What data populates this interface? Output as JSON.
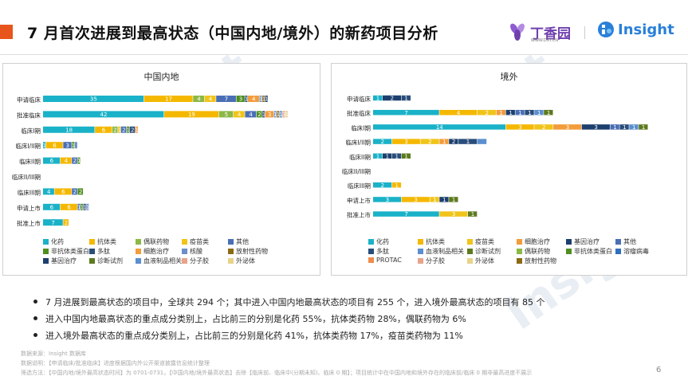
{
  "header": {
    "title": "7 月首次进展到最高状态（中国内地/境外）的新药项目分析",
    "logo_dxy": "丁香园",
    "logo_dxy_sub": "WWW.DXY.CN",
    "logo_insight": "Insight"
  },
  "watermark": "Insight",
  "colors": {
    "化药": "#1ab2c8",
    "抗体类": "#f5b800",
    "偶联药物": "#8cb846",
    "疫苗类": "#f0c419",
    "其他": "#4a6fb5",
    "非抗体类蛋白": "#4e8f1f",
    "多肽": "#2a4d7a",
    "细胞治疗": "#f39c3b",
    "核酸": "#6b8fc9",
    "放射性药物": "#8b6a14",
    "基因治疗": "#1d3f6e",
    "诊断试剂": "#5d7a1f",
    "血液制品相关": "#5b8fd0",
    "分子胶": "#e8a48a",
    "外泌体": "#e8d38a",
    "溶瘤病毒": "#2f6fc0",
    "PROTAC": "#f08c4a"
  },
  "chart_data": [
    {
      "type": "bar",
      "orientation": "horizontal-stacked",
      "title": "中国内地",
      "categories": [
        "申请临床",
        "批准临床",
        "临床I期",
        "临床I/II期",
        "临床II期",
        "临床II/III期",
        "临床III期",
        "申请上市",
        "批准上市"
      ],
      "series": [
        {
          "name": "化药",
          "values": [
            35,
            42,
            18,
            1,
            6,
            0,
            4,
            6,
            7
          ]
        },
        {
          "name": "抗体类",
          "values": [
            17,
            19,
            6,
            6,
            4,
            0,
            6,
            6,
            2
          ]
        },
        {
          "name": "偶联药物",
          "values": [
            4,
            5,
            2,
            0,
            0,
            0,
            0,
            0,
            0
          ]
        },
        {
          "name": "疫苗类",
          "values": [
            4,
            4,
            1,
            0,
            0,
            0,
            0,
            0,
            0
          ]
        },
        {
          "name": "其他",
          "values": [
            7,
            4,
            2,
            3,
            2,
            0,
            2,
            1,
            0
          ]
        },
        {
          "name": "非抗体类蛋白",
          "values": [
            3,
            2,
            1,
            1,
            1,
            0,
            2,
            1,
            0
          ]
        },
        {
          "name": "多肽",
          "values": [
            1,
            1,
            2,
            0,
            0,
            0,
            0,
            1,
            0
          ]
        },
        {
          "name": "细胞治疗",
          "values": [
            4,
            3,
            1,
            0,
            0,
            0,
            0,
            0,
            0
          ]
        },
        {
          "name": "核酸",
          "values": [
            1,
            1,
            0,
            1,
            0,
            0,
            0,
            1,
            0
          ]
        },
        {
          "name": "放射性药物",
          "values": [
            1,
            1,
            0,
            0,
            0,
            0,
            0,
            0,
            0
          ]
        },
        {
          "name": "基因治疗",
          "values": [
            1,
            0,
            0,
            0,
            0,
            0,
            0,
            0,
            0
          ]
        },
        {
          "name": "诊断试剂",
          "values": [
            0,
            0,
            0,
            0,
            0,
            0,
            0,
            0,
            0
          ]
        },
        {
          "name": "血液制品相关",
          "values": [
            0,
            1,
            0,
            0,
            0,
            0,
            0,
            0,
            0
          ]
        },
        {
          "name": "分子胶",
          "values": [
            0,
            1,
            0,
            0,
            0,
            0,
            0,
            0,
            0
          ]
        },
        {
          "name": "外泌体",
          "values": [
            0,
            1,
            0,
            0,
            0,
            0,
            0,
            0,
            0
          ]
        }
      ],
      "labels": [
        [
          "35",
          "17",
          "4",
          "4",
          "7",
          "3",
          "1",
          "4",
          "1",
          "1",
          "1"
        ],
        [
          "42",
          "19",
          "5",
          "4",
          "4",
          "2",
          "1",
          "3",
          "1",
          "1",
          "1",
          "3",
          "1"
        ],
        [
          "18",
          "6",
          "2",
          "1",
          "2",
          "1",
          "2",
          "1"
        ],
        [
          "1",
          "6",
          "3",
          "1"
        ],
        [
          "6",
          "4",
          "2",
          "1"
        ],
        [],
        [
          "4",
          "6",
          "2",
          "2"
        ],
        [
          "6",
          "6",
          "1",
          "1",
          "1",
          "1"
        ],
        [
          "7",
          "2"
        ]
      ],
      "legend": [
        "化药",
        "抗体类",
        "偶联药物",
        "疫苗类",
        "其他",
        "非抗体类蛋白",
        "多肽",
        "细胞治疗",
        "核酸",
        "放射性药物",
        "基因治疗",
        "诊断试剂",
        "血液制品相关",
        "分子胶",
        "外泌体"
      ]
    },
    {
      "type": "bar",
      "orientation": "horizontal-stacked",
      "title": "境外",
      "categories": [
        "申请临床",
        "批准临床",
        "临床I期",
        "临床I/II期",
        "临床II期",
        "临床II/III期",
        "临床III期",
        "申请上市",
        "批准上市"
      ],
      "series": [
        {
          "name": "化药",
          "values": [
            1,
            7,
            14,
            2,
            1,
            0,
            2,
            3,
            7
          ]
        },
        {
          "name": "抗体类",
          "values": [
            0,
            4,
            3,
            3,
            0,
            0,
            1,
            3,
            0
          ]
        },
        {
          "name": "疫苗类",
          "values": [
            0,
            2,
            2,
            2,
            0,
            0,
            0,
            1,
            3
          ]
        },
        {
          "name": "细胞治疗",
          "values": [
            0,
            1,
            3,
            1,
            0,
            0,
            0,
            0,
            0
          ]
        },
        {
          "name": "基因治疗",
          "values": [
            2,
            1,
            3,
            1,
            1,
            0,
            0,
            1,
            0
          ]
        },
        {
          "name": "其他",
          "values": [
            0,
            1,
            1,
            0,
            0,
            0,
            0,
            0,
            0
          ]
        },
        {
          "name": "多肽",
          "values": [
            1,
            1,
            1,
            2,
            1,
            0,
            0,
            0,
            0
          ]
        },
        {
          "name": "血液制品相关",
          "values": [
            0,
            1,
            1,
            1,
            0,
            0,
            0,
            0,
            0
          ]
        },
        {
          "name": "诊断试剂",
          "values": [
            0,
            1,
            1,
            0,
            1,
            0,
            0,
            1,
            1
          ]
        }
      ],
      "labels": [
        [
          "1",
          "2",
          "1"
        ],
        [
          "7",
          "4",
          "2",
          "1",
          "1",
          "1",
          "1",
          "1",
          "1"
        ],
        [
          "14",
          "3",
          "2",
          "3",
          "3",
          "1",
          "1",
          "1",
          "1"
        ],
        [
          "2",
          "3",
          "2",
          "1",
          "2",
          "1"
        ],
        [
          "1",
          "1",
          "1",
          "1"
        ],
        [],
        [
          "2",
          "1"
        ],
        [
          "3",
          "3",
          "1",
          "1",
          "1"
        ],
        [
          "7",
          "3",
          "1"
        ]
      ],
      "legend": [
        "化药",
        "抗体类",
        "疫苗类",
        "细胞治疗",
        "基因治疗",
        "其他",
        "多肽",
        "血液制品相关",
        "诊断试剂",
        "偶联药物",
        "非抗体类蛋白",
        "溶瘤病毒",
        "PROTAC",
        "分子胶",
        "外泌体",
        "放射性药物"
      ]
    }
  ],
  "bullets": [
    "7 月进展到最高状态的项目中，全球共 294 个；其中进入中国内地最高状态的项目有 255 个，进入境外最高状态的项目有 85 个",
    "进入中国内地最高状态的重点成分类别上，占比前三的分别是化药 55%，抗体类药物 28%，偶联药物为 6%",
    "进入境外最高状态的重点成分类别上，占比前三的分别是化药 41%，抗体类药物 17%，疫苗类药物为 11%"
  ],
  "footer": {
    "source": "数据来源：Insight 数据库",
    "note": "数据说明：【申请临床/批准临床】进度根据国内外公开渠道披露信息统计整理",
    "filter": "筛选方法：【中国内地/境外最高状态时间】为 0701-0731，【中国内地/境外最高状态】去除【临床前、临床中(分期未知)、临床 0 期】；项目统计中在中国内地和境外存在的临床前/临床 0 期非最高进度不展示"
  },
  "page_number": "6"
}
